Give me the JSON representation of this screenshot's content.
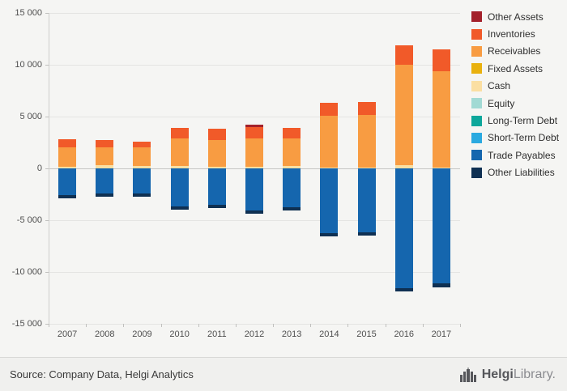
{
  "page": {
    "background": "#f5f5f3",
    "grid_color": "#e4e4e2",
    "zero_line_color": "#c7c7c5",
    "axis_text_color": "#4f4f4f"
  },
  "chart_data": {
    "type": "bar",
    "stacked": true,
    "title": "",
    "xlabel": "",
    "ylabel": "",
    "grid": true,
    "legend_position": "right",
    "ylim": [
      -15000,
      15000
    ],
    "ytick_step": 5000,
    "ytick_labels": [
      "15 000",
      "10 000",
      "5 000",
      "0",
      "-5 000",
      "-10 000",
      "-15 000"
    ],
    "categories": [
      "2007",
      "2008",
      "2009",
      "2010",
      "2011",
      "2012",
      "2013",
      "2014",
      "2015",
      "2016",
      "2017"
    ],
    "series": [
      {
        "name": "Other Assets",
        "color": "#a3212b",
        "values": [
          0,
          0,
          0,
          0,
          0,
          200,
          0,
          0,
          0,
          0,
          0
        ]
      },
      {
        "name": "Inventories",
        "color": "#f15a29",
        "values": [
          800,
          700,
          600,
          1000,
          1050,
          1100,
          1000,
          1250,
          1250,
          1900,
          2150
        ]
      },
      {
        "name": "Receivables",
        "color": "#f89c42",
        "values": [
          1850,
          1650,
          1750,
          2700,
          2600,
          2750,
          2700,
          4950,
          5050,
          9650,
          9250
        ]
      },
      {
        "name": "Fixed Assets",
        "color": "#e9b10e",
        "values": [
          0,
          0,
          0,
          0,
          0,
          0,
          0,
          0,
          0,
          0,
          0
        ]
      },
      {
        "name": "Cash",
        "color": "#fbdfa2",
        "values": [
          150,
          350,
          250,
          200,
          150,
          150,
          200,
          100,
          100,
          350,
          100
        ]
      },
      {
        "name": "Equity",
        "color": "#a2dad4",
        "values": [
          0,
          0,
          0,
          0,
          0,
          0,
          0,
          0,
          0,
          0,
          0
        ]
      },
      {
        "name": "Long-Term Debt",
        "color": "#0da79b",
        "values": [
          0,
          0,
          0,
          0,
          0,
          0,
          0,
          0,
          0,
          0,
          0
        ]
      },
      {
        "name": "Short-Term Debt",
        "color": "#2aa9e0",
        "values": [
          0,
          0,
          0,
          0,
          0,
          0,
          0,
          0,
          0,
          0,
          0
        ]
      },
      {
        "name": "Trade Payables",
        "color": "#1566ae",
        "values": [
          -2550,
          -2400,
          -2450,
          -3650,
          -3550,
          -4050,
          -3750,
          -6250,
          -6150,
          -11550,
          -11100
        ]
      },
      {
        "name": "Other Liabilities",
        "color": "#0f3052",
        "values": [
          -350,
          -300,
          -300,
          -300,
          -300,
          -300,
          -300,
          -300,
          -300,
          -350,
          -400
        ]
      }
    ]
  },
  "footer": {
    "source": "Source: Company Data, Helgi Analytics",
    "logo_text_bold": "Helgi",
    "logo_text_light": "Library."
  }
}
